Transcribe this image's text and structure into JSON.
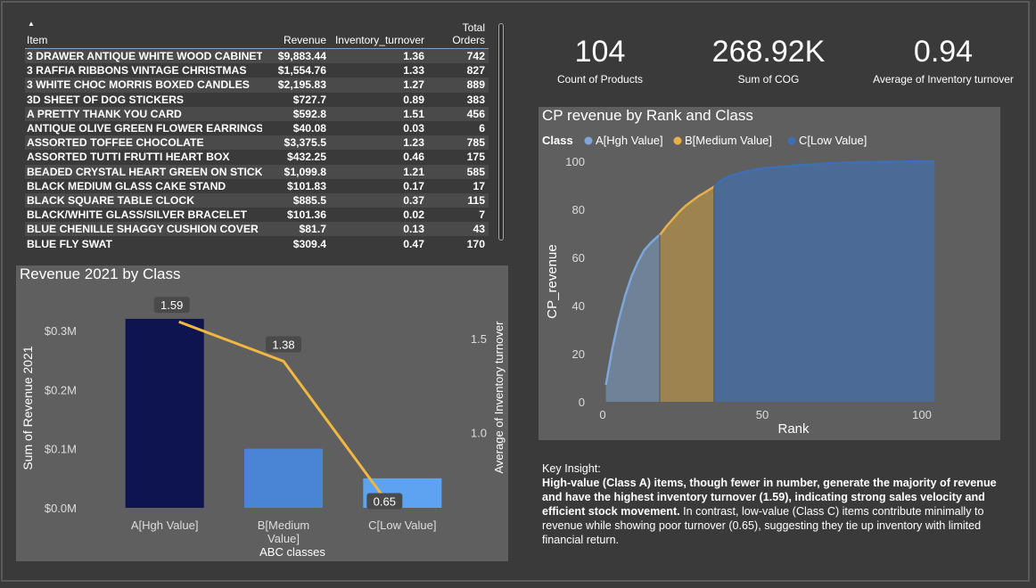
{
  "table": {
    "headers": [
      "Item",
      "Revenue",
      "Inventory_turnover",
      "Total Orders"
    ],
    "rows": [
      [
        "3 DRAWER ANTIQUE WHITE WOOD CABINET",
        "$9,883.44",
        "1.36",
        "742"
      ],
      [
        "3 RAFFIA RIBBONS VINTAGE CHRISTMAS",
        "$1,554.76",
        "1.33",
        "827"
      ],
      [
        "3 WHITE CHOC MORRIS BOXED CANDLES",
        "$2,195.83",
        "1.27",
        "889"
      ],
      [
        "3D SHEET OF DOG STICKERS",
        "$727.7",
        "0.89",
        "383"
      ],
      [
        "A PRETTY THANK YOU CARD",
        "$592.8",
        "1.51",
        "456"
      ],
      [
        "ANTIQUE OLIVE GREEN FLOWER EARRINGS",
        "$40.08",
        "0.03",
        "6"
      ],
      [
        "ASSORTED TOFFEE CHOCOLATE",
        "$3,375.5",
        "1.23",
        "785"
      ],
      [
        "ASSORTED TUTTI FRUTTI HEART BOX",
        "$432.25",
        "0.46",
        "175"
      ],
      [
        "BEADED CRYSTAL HEART GREEN ON STICK",
        "$1,099.8",
        "1.21",
        "585"
      ],
      [
        "BLACK MEDIUM GLASS CAKE STAND",
        "$101.83",
        "0.17",
        "17"
      ],
      [
        "BLACK SQUARE TABLE CLOCK",
        "$885.5",
        "0.37",
        "115"
      ],
      [
        "BLACK/WHITE GLASS/SILVER BRACELET",
        "$101.36",
        "0.02",
        "7"
      ],
      [
        "BLUE CHENILLE SHAGGY CUSHION COVER",
        "$81.7",
        "0.13",
        "43"
      ],
      [
        "BLUE FLY SWAT",
        "$309.4",
        "0.47",
        "170"
      ]
    ]
  },
  "kpis": [
    {
      "value": "104",
      "label": "Count of Products"
    },
    {
      "value": "268.92K",
      "label": "Sum of COG"
    },
    {
      "value": "0.94",
      "label": "Average of Inventory turnover"
    }
  ],
  "insight": {
    "heading": "Key Insight:",
    "bold": "High-value (Class A) items, though fewer in number, generate the majority of revenue and have the highest inventory turnover (1.59), indicating strong sales velocity and efficient stock movement.",
    "normal": " In contrast, low-value (Class C) items contribute minimally to revenue while showing poor turnover (0.65), suggesting they tie up inventory with limited financial return."
  },
  "chart_data": [
    {
      "type": "bar+line",
      "title": "Revenue 2021 by Class",
      "categories": [
        "A[Hgh Value]",
        "B[Medium Value]",
        "C[Low Value]"
      ],
      "category_labels": [
        [
          "A[Hgh Value]"
        ],
        [
          "B[Medium",
          "Value]"
        ],
        [
          "C[Low Value]"
        ]
      ],
      "series": [
        {
          "name": "Sum of Revenue 2021",
          "axis": "left",
          "values": [
            0.32,
            0.1,
            0.05
          ],
          "colors": [
            "#0d1450",
            "#4a84d4",
            "#5ea3f2"
          ]
        },
        {
          "name": "Average of Inventory turnover",
          "axis": "right",
          "values": [
            1.59,
            1.38,
            0.65
          ],
          "labels": [
            "1.59",
            "1.38",
            "0.65"
          ],
          "color": "#f0b840"
        }
      ],
      "xlabel": "ABC classes",
      "ylabel": "Sum of Revenue 2021",
      "ylabel_right": "Average of Inventory turnover",
      "y_ticks": [
        "$0.0M",
        "$0.1M",
        "$0.2M",
        "$0.3M"
      ],
      "y_tick_values": [
        0,
        0.1,
        0.2,
        0.3
      ],
      "ylim": [
        0,
        0.35
      ],
      "y2_ticks": [
        "1.0",
        "1.5"
      ],
      "y2_tick_values": [
        1.0,
        1.5
      ],
      "y2lim": [
        0.6,
        1.7
      ]
    },
    {
      "type": "area",
      "title": "CP revenue by Rank and Class",
      "legend_title": "Class",
      "legend": [
        {
          "name": "A[Hgh Value]",
          "color": "#7ea7d8"
        },
        {
          "name": "B[Medium Value]",
          "color": "#e8b04a"
        },
        {
          "name": "C[Low Value]",
          "color": "#3f6fb2"
        }
      ],
      "xlabel": "Rank",
      "ylabel": "CP_revenue",
      "x_ticks": [
        "0",
        "50",
        "100"
      ],
      "x_tick_values": [
        0,
        50,
        100
      ],
      "y_ticks": [
        "0",
        "20",
        "40",
        "60",
        "80",
        "100"
      ],
      "y_tick_values": [
        0,
        20,
        40,
        60,
        80,
        100
      ],
      "xlim": [
        0,
        100
      ],
      "ylim": [
        0,
        100
      ],
      "segments": [
        {
          "class": "A[Hgh Value]",
          "x": [
            1,
            3,
            5,
            7,
            9,
            11,
            13,
            15,
            17,
            18
          ],
          "y": [
            7,
            22,
            34,
            44,
            52,
            58,
            63,
            66,
            68.5,
            69.5
          ]
        },
        {
          "class": "B[Medium Value]",
          "x": [
            18,
            20,
            22,
            24,
            26,
            28,
            30,
            32,
            35
          ],
          "y": [
            69.5,
            73,
            76,
            79,
            81.5,
            83.5,
            85.5,
            87,
            89.5
          ]
        },
        {
          "class": "C[Low Value]",
          "x": [
            35,
            37,
            40,
            45,
            50,
            60,
            70,
            80,
            90,
            104
          ],
          "y": [
            89.5,
            92,
            94,
            95.8,
            97,
            98.3,
            99.1,
            99.6,
            99.8,
            100
          ]
        }
      ]
    }
  ]
}
